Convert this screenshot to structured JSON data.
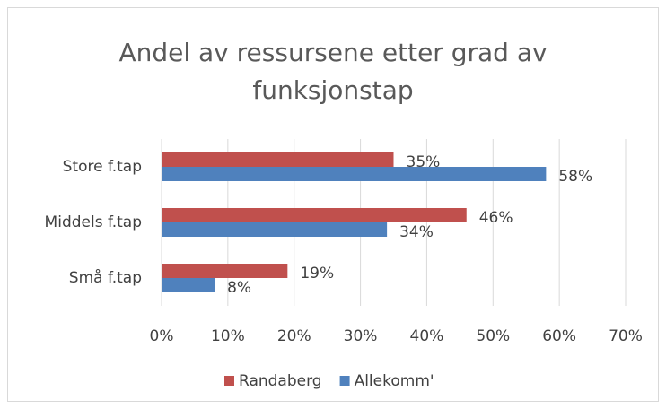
{
  "chart_data": {
    "type": "hbar",
    "title": "Andel av ressursene etter grad av funksjonstap",
    "categories": [
      "Store f.tap",
      "Middels f.tap",
      "Små f.tap"
    ],
    "series": [
      {
        "name": "Randaberg",
        "color": "#c0504d",
        "values": [
          35,
          46,
          19
        ],
        "value_labels": [
          "35%",
          "46%",
          "19%"
        ]
      },
      {
        "name": "Allekomm'",
        "color": "#4f81bd",
        "values": [
          58,
          34,
          8
        ],
        "value_labels": [
          "58%",
          "34%",
          "8%"
        ]
      }
    ],
    "xlim": [
      0,
      70
    ],
    "xticks": [
      {
        "value": 0,
        "label": "0%"
      },
      {
        "value": 10,
        "label": "10%"
      },
      {
        "value": 20,
        "label": "20%"
      },
      {
        "value": 30,
        "label": "30%"
      },
      {
        "value": 40,
        "label": "40%"
      },
      {
        "value": 50,
        "label": "50%"
      },
      {
        "value": 60,
        "label": "60%"
      },
      {
        "value": 70,
        "label": "70%"
      }
    ],
    "grid": true,
    "legend": "bottom"
  }
}
